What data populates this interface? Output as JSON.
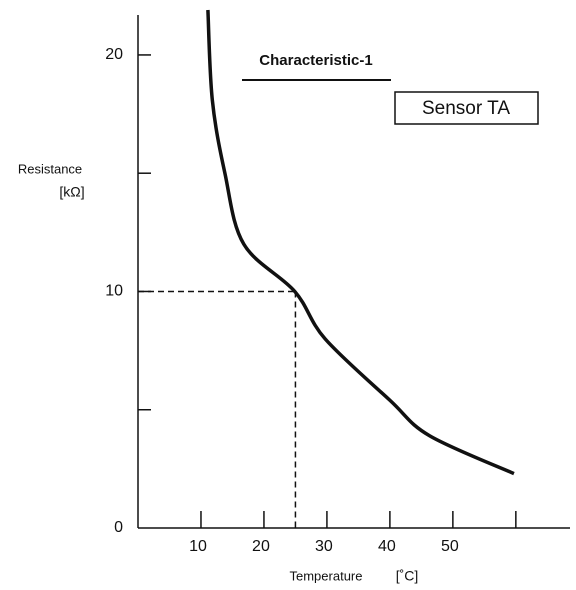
{
  "chart_data": {
    "type": "line",
    "title": "Characteristic-1",
    "annotation": "Sensor TA",
    "y_label": "Resistance",
    "y_unit": "[kΩ]",
    "x_label": "Temperature",
    "x_unit": "[˚C]",
    "x": [
      11.1,
      11.8,
      13.8,
      16.8,
      24.9,
      29.7,
      40,
      46.3,
      59.7
    ],
    "values": [
      21.9,
      18.1,
      15,
      12,
      10,
      8,
      5.4,
      3.9,
      2.3
    ],
    "color": "#111111",
    "xlim": [
      0,
      68.6
    ],
    "ylim": [
      0,
      21.9
    ],
    "xticks": [
      10,
      20,
      30,
      40,
      50
    ],
    "minor_xticks": [
      60
    ],
    "yticks": [
      0,
      10,
      20
    ],
    "minor_yticks": [
      5,
      15
    ],
    "reference": {
      "x": 25,
      "y": 10
    }
  }
}
